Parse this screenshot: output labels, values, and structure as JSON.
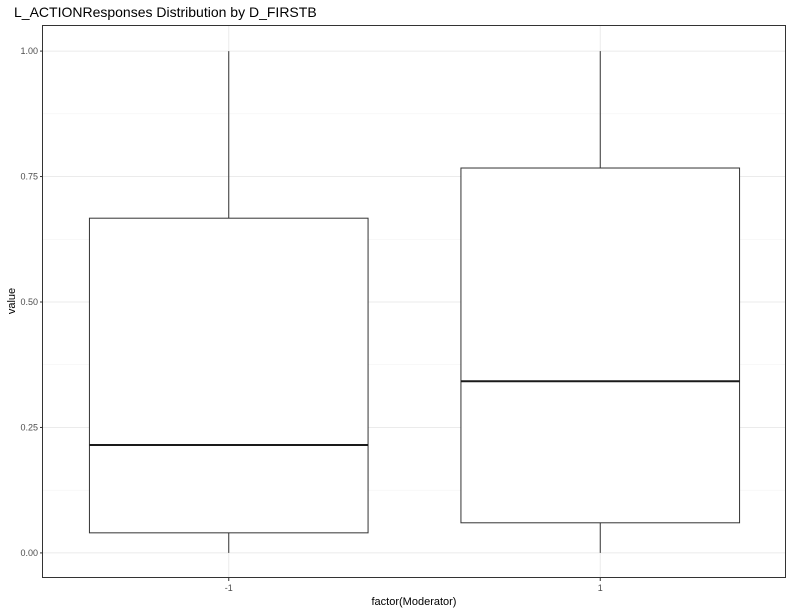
{
  "chart_data": {
    "type": "boxplot",
    "title": "L_ACTIONResponses Distribution by D_FIRSTB",
    "xlabel": "factor(Moderator)",
    "ylabel": "value",
    "categories": [
      "-1",
      "1"
    ],
    "ylim": [
      -0.05,
      1.05
    ],
    "yticks": [
      0.0,
      0.25,
      0.5,
      0.75,
      1.0
    ],
    "ytick_labels": [
      "0.00",
      "0.25",
      "0.50",
      "0.75",
      "1.00"
    ],
    "grid": true,
    "theme": "bw",
    "boxes": [
      {
        "category": "-1",
        "min": 0.0,
        "q1": 0.04,
        "median": 0.215,
        "q3": 0.667,
        "max": 1.0
      },
      {
        "category": "1",
        "min": 0.0,
        "q1": 0.06,
        "median": 0.342,
        "q3": 0.767,
        "max": 1.0
      }
    ]
  }
}
